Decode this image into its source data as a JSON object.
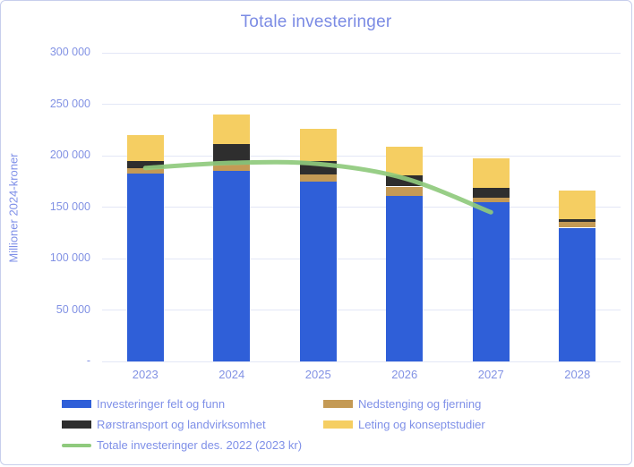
{
  "chart_data": {
    "type": "bar",
    "stacked": true,
    "title": "Totale investeringer",
    "xlabel": "",
    "ylabel": "Millioner 2024-kroner",
    "ylim": [
      0,
      300000
    ],
    "grid": true,
    "legend_position": "bottom",
    "categories": [
      "2023",
      "2024",
      "2025",
      "2026",
      "2027",
      "2028"
    ],
    "y_ticks": [
      {
        "label": "300 000",
        "value": 300000
      },
      {
        "label": "250 000",
        "value": 250000
      },
      {
        "label": "200 000",
        "value": 200000
      },
      {
        "label": "150 000",
        "value": 150000
      },
      {
        "label": "100 000",
        "value": 100000
      },
      {
        "label": "50 000",
        "value": 50000
      },
      {
        "label": "-",
        "value": 0
      }
    ],
    "series": [
      {
        "name": "Investeringer felt og funn",
        "color": "#2f5fd8",
        "values": [
          183000,
          185000,
          175000,
          161000,
          155000,
          130000
        ]
      },
      {
        "name": "Nedstenging og fjerning",
        "color": "#c49a55",
        "values": [
          5000,
          6000,
          7000,
          9000,
          4000,
          6000
        ]
      },
      {
        "name": "Rørstransport og landvirksomhet",
        "color": "#2e2e2e",
        "values": [
          7000,
          20000,
          13000,
          11000,
          10000,
          2500
        ]
      },
      {
        "name": "Leting og konseptstudier",
        "color": "#f5ce62",
        "values": [
          25000,
          29000,
          31000,
          28000,
          28000,
          27500
        ]
      }
    ],
    "line_series": {
      "name": "Totale investeringer des. 2022 (2023 kr)",
      "color": "#8fca7d",
      "x": [
        "2023",
        "2024",
        "2025",
        "2026",
        "2027"
      ],
      "values": [
        188000,
        193000,
        192000,
        178000,
        145000
      ]
    }
  }
}
